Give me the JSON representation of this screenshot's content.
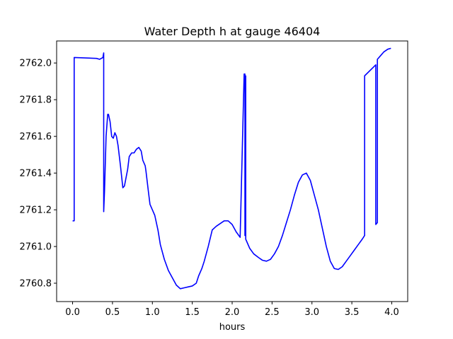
{
  "chart_data": {
    "type": "line",
    "title": "Water Depth h at gauge 46404",
    "xlabel": "hours",
    "ylabel": "",
    "xlim": [
      -0.2,
      4.2
    ],
    "ylim": [
      2760.7,
      2762.12
    ],
    "xticks": [
      0.0,
      0.5,
      1.0,
      1.5,
      2.0,
      2.5,
      3.0,
      3.5,
      4.0
    ],
    "xtick_labels": [
      "0.0",
      "0.5",
      "1.0",
      "1.5",
      "2.0",
      "2.5",
      "3.0",
      "3.5",
      "4.0"
    ],
    "yticks": [
      2760.8,
      2761.0,
      2761.2,
      2761.4,
      2761.6,
      2761.8,
      2762.0
    ],
    "ytick_labels": [
      "2760.8",
      "2761.0",
      "2761.2",
      "2761.4",
      "2761.6",
      "2761.8",
      "2762.0"
    ],
    "grid": false,
    "series": [
      {
        "color": "#0000ff",
        "x": [
          0.0,
          0.02,
          0.02,
          0.3,
          0.34,
          0.38,
          0.39,
          0.39,
          0.4,
          0.42,
          0.44,
          0.45,
          0.47,
          0.49,
          0.51,
          0.53,
          0.55,
          0.57,
          0.6,
          0.63,
          0.65,
          0.69,
          0.71,
          0.74,
          0.77,
          0.8,
          0.83,
          0.86,
          0.88,
          0.91,
          0.92,
          0.95,
          0.97,
          1.0,
          1.03,
          1.07,
          1.1,
          1.15,
          1.2,
          1.25,
          1.3,
          1.35,
          1.4,
          1.45,
          1.5,
          1.55,
          1.58,
          1.62,
          1.65,
          1.7,
          1.75,
          1.8,
          1.85,
          1.9,
          1.95,
          2.0,
          2.05,
          2.1,
          2.15,
          2.16,
          2.16,
          2.17,
          2.17,
          2.18,
          2.22,
          2.27,
          2.33,
          2.38,
          2.43,
          2.48,
          2.53,
          2.58,
          2.63,
          2.68,
          2.73,
          2.78,
          2.83,
          2.88,
          2.93,
          2.98,
          3.03,
          3.08,
          3.13,
          3.18,
          3.23,
          3.28,
          3.33,
          3.38,
          3.43,
          3.48,
          3.53,
          3.58,
          3.63,
          3.66,
          3.66,
          3.8,
          3.8,
          3.82,
          3.82,
          3.86,
          3.9,
          3.95,
          3.99
        ],
        "y": [
          2761.14,
          2761.14,
          2762.03,
          2762.025,
          2762.02,
          2762.03,
          2762.055,
          2761.19,
          2761.3,
          2761.6,
          2761.72,
          2761.72,
          2761.68,
          2761.6,
          2761.59,
          2761.62,
          2761.6,
          2761.55,
          2761.44,
          2761.32,
          2761.33,
          2761.42,
          2761.49,
          2761.51,
          2761.51,
          2761.53,
          2761.54,
          2761.52,
          2761.47,
          2761.44,
          2761.41,
          2761.3,
          2761.23,
          2761.2,
          2761.17,
          2761.09,
          2761.01,
          2760.93,
          2760.87,
          2760.83,
          2760.79,
          2760.77,
          2760.775,
          2760.78,
          2760.785,
          2760.8,
          2760.84,
          2760.88,
          2760.92,
          2761.0,
          2761.09,
          2761.11,
          2761.125,
          2761.14,
          2761.14,
          2761.12,
          2761.08,
          2761.05,
          2761.94,
          2761.94,
          2761.06,
          2761.93,
          2761.04,
          2761.03,
          2760.99,
          2760.96,
          2760.94,
          2760.925,
          2760.92,
          2760.93,
          2760.96,
          2761.0,
          2761.06,
          2761.13,
          2761.2,
          2761.28,
          2761.35,
          2761.39,
          2761.4,
          2761.36,
          2761.28,
          2761.2,
          2761.1,
          2761.0,
          2760.92,
          2760.88,
          2760.875,
          2760.89,
          2760.92,
          2760.95,
          2760.98,
          2761.01,
          2761.04,
          2761.06,
          2761.93,
          2761.99,
          2761.12,
          2761.13,
          2762.02,
          2762.04,
          2762.06,
          2762.075,
          2762.08
        ]
      }
    ]
  }
}
